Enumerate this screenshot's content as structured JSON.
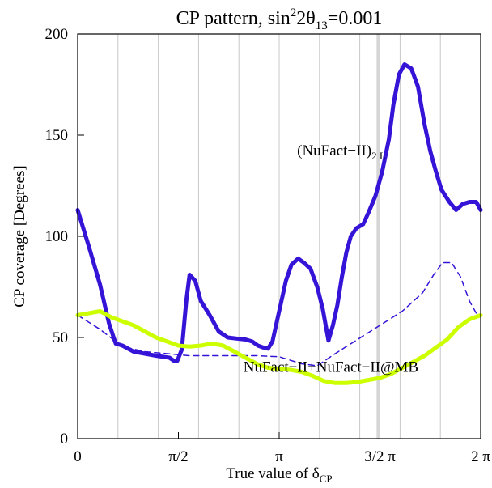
{
  "chart_data": {
    "type": "line",
    "title_parts": {
      "prefix": "CP pattern, sin",
      "sup": "2",
      "mid": "2θ",
      "sub": "13",
      "suffix": "=0.001"
    },
    "xlabel_parts": {
      "prefix": "True value of δ",
      "sub": "CP"
    },
    "ylabel": "CP coverage [Degrees]",
    "xlim": [
      0,
      360
    ],
    "ylim": [
      0,
      200
    ],
    "x_unit": "degrees",
    "x_ticks": [
      {
        "value": 0,
        "label": "0"
      },
      {
        "value": 90,
        "label": "π/2"
      },
      {
        "value": 180,
        "label": "π"
      },
      {
        "value": 270,
        "label": "3/2 π"
      },
      {
        "value": 360,
        "label": "2 π"
      }
    ],
    "y_ticks": [
      {
        "value": 0,
        "label": "0"
      },
      {
        "value": 50,
        "label": "50"
      },
      {
        "value": 100,
        "label": "100"
      },
      {
        "value": 150,
        "label": "150"
      },
      {
        "value": 200,
        "label": "200"
      }
    ],
    "vertical_gridlines": [
      36,
      72,
      108,
      144,
      180,
      216,
      252,
      288,
      324
    ],
    "highlight_band": [
      267,
      270
    ],
    "grid": "vertical lines only",
    "annotations": [
      {
        "id": "nufact-2l",
        "text": "(NuFact−II)",
        "sub": "2 L",
        "x": 196,
        "y": 140,
        "color": "#000000"
      },
      {
        "id": "nufact-mb",
        "text": "NuFact−II+NuFact−II@MB",
        "x": 148,
        "y": 33,
        "color": "#000000"
      }
    ],
    "series": [
      {
        "color": "#3514d8",
        "style": "solid",
        "width": 5,
        "x": [
          0,
          10,
          20,
          28,
          34,
          40,
          50,
          60,
          70,
          76,
          82,
          86,
          89,
          93,
          97,
          100,
          105,
          110,
          118,
          126,
          134,
          142,
          150,
          156,
          161,
          166,
          170,
          174,
          178,
          182,
          186,
          191,
          197,
          202,
          208,
          214,
          219,
          224,
          228,
          232,
          236,
          240,
          244,
          249,
          255,
          260,
          266,
          272,
          278,
          282,
          287,
          292,
          298,
          304,
          310,
          315,
          320,
          325,
          332,
          338,
          344,
          350,
          356,
          360
        ],
        "y": [
          113,
          95,
          76,
          57,
          47,
          46,
          43,
          42,
          41,
          40.5,
          40,
          38.5,
          38.5,
          44,
          68,
          81,
          78,
          68,
          61,
          53,
          50,
          49.5,
          49,
          48,
          46,
          45,
          44.5,
          48,
          58,
          68,
          78,
          86,
          89,
          87,
          84,
          75,
          64,
          48.5,
          56,
          66,
          80,
          92,
          100,
          104,
          106,
          112,
          120,
          132,
          148,
          165,
          180,
          185,
          183,
          174,
          155,
          142,
          132,
          123,
          117,
          113,
          116,
          117,
          117,
          113
        ]
      },
      {
        "color": "#3514d8",
        "style": "dashed",
        "width": 1.5,
        "x": [
          0,
          20,
          40,
          60,
          80,
          100,
          120,
          140,
          160,
          180,
          200,
          214,
          230,
          250,
          270,
          290,
          308,
          318,
          326,
          334,
          342,
          350,
          356,
          360
        ],
        "y": [
          61,
          54,
          45.5,
          43,
          42,
          41,
          41,
          41,
          41,
          40.5,
          37,
          36,
          42,
          49,
          56,
          63,
          72,
          81,
          87,
          87,
          80,
          68,
          62,
          61
        ]
      },
      {
        "color": "#ccff00",
        "style": "solid",
        "width": 5,
        "x": [
          0,
          10,
          20,
          30,
          40,
          50,
          60,
          70,
          80,
          90,
          100,
          110,
          120,
          130,
          140,
          150,
          160,
          170,
          180,
          190,
          200,
          210,
          220,
          230,
          240,
          250,
          260,
          270,
          280,
          290,
          300,
          310,
          320,
          330,
          340,
          350,
          360
        ],
        "y": [
          61,
          62,
          63,
          60,
          58,
          56,
          53,
          50,
          48,
          46,
          45.5,
          46,
          47,
          46,
          43,
          40,
          37,
          35,
          34.5,
          34,
          33,
          31,
          28.5,
          27.5,
          27.5,
          28,
          29,
          30,
          32,
          35,
          38,
          41,
          45,
          49,
          55,
          59,
          61
        ]
      }
    ]
  }
}
